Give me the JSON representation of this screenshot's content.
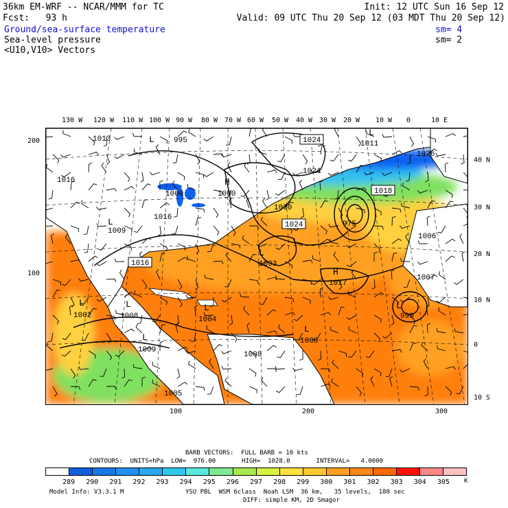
{
  "header": {
    "line1_left": "36km EM-WRF -- NCAR/MMM for TC",
    "line1_right": "Init: 12 UTC Sun 16 Sep 12",
    "line2_left": "Fcst:   93 h",
    "line2_right": "Valid: 09 UTC Thu 20 Sep 12 (03 MDT Thu 20 Sep 12)",
    "fields": [
      {
        "label": "Ground/sea-surface temperature",
        "sm": "sm= 4"
      },
      {
        "label": "Sea-level pressure",
        "sm": "sm= 2"
      },
      {
        "label": "<U10,V10> Vectors",
        "sm": ""
      }
    ]
  },
  "map": {
    "lon_labels": [
      "130 W",
      "120 W",
      "110 W",
      "100 W",
      "90 W",
      "80 W",
      "70 W",
      "60 W",
      "50 W",
      "40 W",
      "30 W",
      "20 W",
      "10 W",
      "0",
      "10 E"
    ],
    "lat_labels": [
      "40 N",
      "30 N",
      "20 N",
      "10 N",
      "0",
      "10 S"
    ],
    "left_ticks": [
      "200",
      "100"
    ],
    "bottom_ticks": [
      "100",
      "200",
      "300"
    ],
    "pressure_labels": [
      "1013",
      "995",
      "1024",
      "1011",
      "1026",
      "1016",
      "1024",
      "1018",
      "1000",
      "1000",
      "975",
      "1030",
      "1024",
      "1016",
      "1009",
      "1006",
      "1016",
      "1003",
      "1017",
      "1007",
      "1002",
      "1008",
      "1004",
      "990",
      "1008",
      "1009",
      "1008",
      "1005",
      "H",
      "H",
      "L",
      "L",
      "L",
      "L",
      "L",
      "L",
      "L",
      "L",
      "L",
      "L"
    ],
    "colors": {
      "ocean_warm": "#ff7f10",
      "ocean_mid": "#ffa020",
      "ocean_cool": "#ffd040",
      "ocean_green": "#80e060",
      "ocean_cyan": "#30c0f0",
      "ocean_blue": "#1060f0"
    }
  },
  "footer": {
    "barb_vectors": "BARB VECTORS:  FULL BARB = 10 kts",
    "contours": "CONTOURS:  UNITS=hPa  LOW=  976.00       HIGH=  1028.0       INTERVAL=   4.0000",
    "colorbar_values": [
      "289",
      "290",
      "291",
      "292",
      "293",
      "294",
      "295",
      "296",
      "297",
      "298",
      "299",
      "300",
      "301",
      "302",
      "303",
      "304",
      "305"
    ],
    "colorbar_unit": "K",
    "colorbar_colors": [
      "#ffffff",
      "#1060e0",
      "#1878e8",
      "#2090f0",
      "#28a8f0",
      "#30c8f0",
      "#58e8e0",
      "#80e890",
      "#a8e850",
      "#d8f040",
      "#ffe040",
      "#ffc830",
      "#ffa020",
      "#ff8818",
      "#ff6808",
      "#ff1008",
      "#ff8888",
      "#ffc0c0"
    ],
    "model_info_left": "Model Info: V3.3.1 M",
    "model_info_right": "YSU PBL  WSM 6class  Noah LSM  36 km,   35 levels,  180 sec",
    "model_info_line2": "DIFF: simple KM, 2D Smagor"
  }
}
